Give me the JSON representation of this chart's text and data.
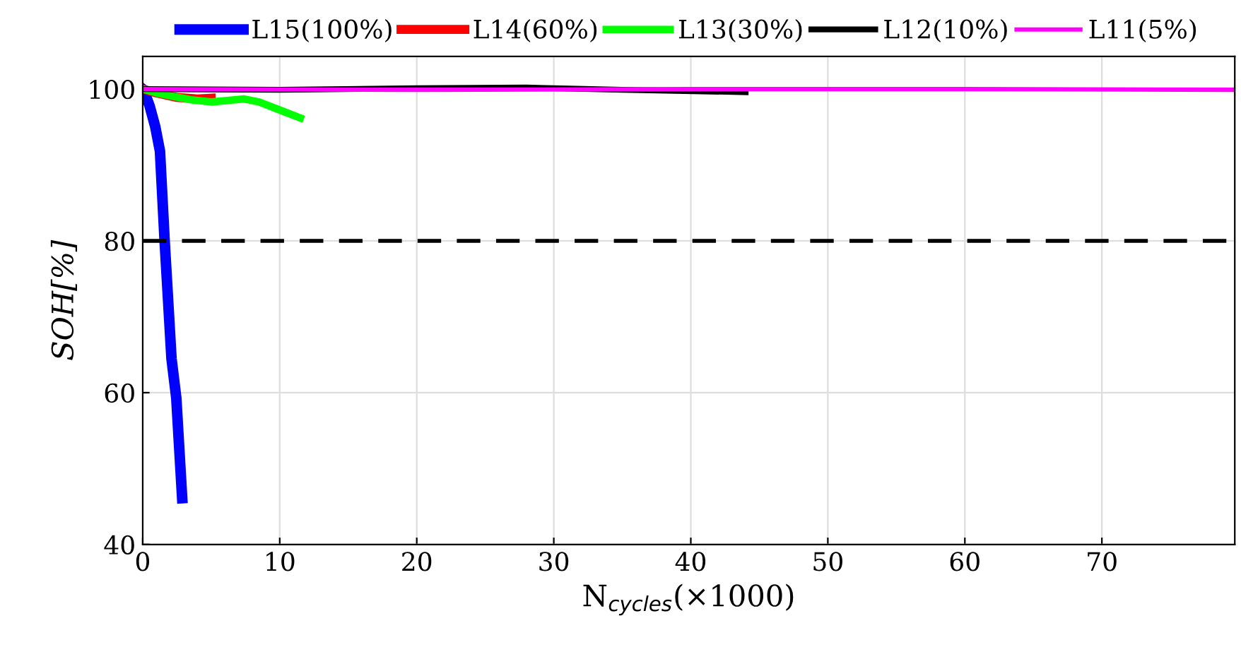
{
  "chart_data": {
    "type": "line",
    "xlabel": "N$_{cycles}$(×1000)",
    "ylabel": "SOH[%]",
    "xlim": [
      0,
      79.7
    ],
    "ylim": [
      40,
      104.3
    ],
    "xticks": [
      0,
      10,
      20,
      30,
      40,
      50,
      60,
      70
    ],
    "yticks": [
      40,
      60,
      80,
      100
    ],
    "grid": true,
    "legend": "top",
    "line_style": "solid",
    "marker": "none",
    "ref_lines": [
      {
        "axis": "y",
        "value": 80,
        "color": "#000000",
        "line_style": "dashed"
      }
    ],
    "series": [
      {
        "name": "L15(100%)",
        "color": "#0000ff",
        "x": [
          0,
          0.07,
          0.5,
          0.92,
          1.26,
          1.6,
          2.1,
          2.45,
          2.88
        ],
        "values": [
          100,
          99.9,
          97.8,
          95,
          91.8,
          80,
          64.5,
          59.3,
          46.1
        ]
      },
      {
        "name": "L14(60%)",
        "color": "#ff0000",
        "x": [
          0,
          1,
          2.5,
          4,
          5
        ],
        "values": [
          100,
          99.5,
          98.9,
          98.7,
          98.8
        ]
      },
      {
        "name": "L13(30%)",
        "color": "#00ff00",
        "x": [
          0,
          1,
          2.3,
          3.5,
          5,
          6.2,
          7.4,
          8.5,
          10.2,
          11.5
        ],
        "values": [
          100,
          99.5,
          99,
          98.6,
          98.3,
          98.5,
          98.7,
          98.3,
          97.1,
          96.2
        ]
      },
      {
        "name": "L12(10%)",
        "color": "#000000",
        "x": [
          0,
          10,
          20,
          28,
          35,
          44
        ],
        "values": [
          100,
          99.9,
          100.1,
          100.2,
          99.9,
          99.6
        ]
      },
      {
        "name": "L11(5%)",
        "color": "#ff00ff",
        "x": [
          0,
          20,
          40,
          60,
          79.7
        ],
        "values": [
          100,
          99.9,
          100,
          100,
          99.9
        ]
      }
    ]
  }
}
